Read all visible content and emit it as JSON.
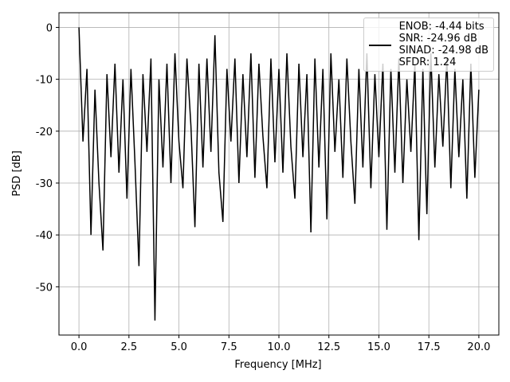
{
  "chart_data": {
    "type": "line",
    "xlabel": "Frequency [MHz]",
    "ylabel": "PSD [dB]",
    "x": [
      0,
      0.2,
      0.4,
      0.6,
      0.8,
      1.0,
      1.2,
      1.4,
      1.6,
      1.8,
      2.0,
      2.2,
      2.4,
      2.6,
      2.8,
      3.0,
      3.2,
      3.4,
      3.6,
      3.8,
      4.0,
      4.2,
      4.4,
      4.6,
      4.8,
      5.0,
      5.2,
      5.4,
      5.6,
      5.8,
      6.0,
      6.2,
      6.4,
      6.6,
      6.8,
      7.0,
      7.2,
      7.4,
      7.6,
      7.8,
      8.0,
      8.2,
      8.4,
      8.6,
      8.8,
      9.0,
      9.2,
      9.4,
      9.6,
      9.8,
      10.0,
      10.2,
      10.4,
      10.6,
      10.8,
      11.0,
      11.2,
      11.4,
      11.6,
      11.8,
      12.0,
      12.2,
      12.4,
      12.6,
      12.8,
      13.0,
      13.2,
      13.4,
      13.6,
      13.8,
      14.0,
      14.2,
      14.4,
      14.6,
      14.8,
      15.0,
      15.2,
      15.4,
      15.6,
      15.8,
      16.0,
      16.2,
      16.4,
      16.6,
      16.8,
      17.0,
      17.2,
      17.4,
      17.6,
      17.8,
      18.0,
      18.2,
      18.4,
      18.6,
      18.8,
      19.0,
      19.2,
      19.4,
      19.6,
      19.8,
      20.0
    ],
    "series": [
      {
        "name": "ENOB: -4.44 bits\nSNR: -24.96 dB\nSINAD: -24.98 dB\nSFDR: 1.24",
        "color": "#000000",
        "values": [
          0,
          -22,
          -8,
          -40,
          -12,
          -30,
          -43,
          -9,
          -25,
          -7,
          -28,
          -10,
          -33,
          -8,
          -26,
          -46,
          -9,
          -24,
          -6,
          -56.5,
          -10,
          -27,
          -7,
          -30,
          -5,
          -22,
          -31,
          -6,
          -19,
          -38.5,
          -7,
          -27,
          -6,
          -24,
          -1.5,
          -28,
          -37.5,
          -8,
          -22,
          -6,
          -30,
          -9,
          -25,
          -5,
          -29,
          -7,
          -21,
          -31,
          -6,
          -26,
          -8,
          -28,
          -5,
          -23,
          -33,
          -7,
          -25,
          -9,
          -39.5,
          -6,
          -27,
          -8,
          -37,
          -5,
          -24,
          -10,
          -29,
          -6,
          -22,
          -34,
          -8,
          -27,
          -5,
          -31,
          -9,
          -25,
          -7,
          -39,
          -8,
          -28,
          -6,
          -30,
          -10,
          -24,
          -7,
          -41,
          -8,
          -36,
          -5,
          -27,
          -9,
          -23,
          -6,
          -31,
          -8,
          -25,
          -10,
          -33,
          -7,
          -29,
          -12
        ]
      }
    ],
    "xlim": [
      -1,
      21
    ],
    "xticks": [
      {
        "value": 0,
        "label": "0.0"
      },
      {
        "value": 2.5,
        "label": "2.5"
      },
      {
        "value": 5,
        "label": "5.0"
      },
      {
        "value": 7.5,
        "label": "7.5"
      },
      {
        "value": 10,
        "label": "10.0"
      },
      {
        "value": 12.5,
        "label": "12.5"
      },
      {
        "value": 15,
        "label": "15.0"
      },
      {
        "value": 17.5,
        "label": "17.5"
      },
      {
        "value": 20,
        "label": "20.0"
      }
    ],
    "ylim": [
      -59.3,
      2.83
    ],
    "yticks": [
      0,
      -10,
      -20,
      -30,
      -40,
      -50
    ],
    "grid": true,
    "legend": "upper right"
  }
}
